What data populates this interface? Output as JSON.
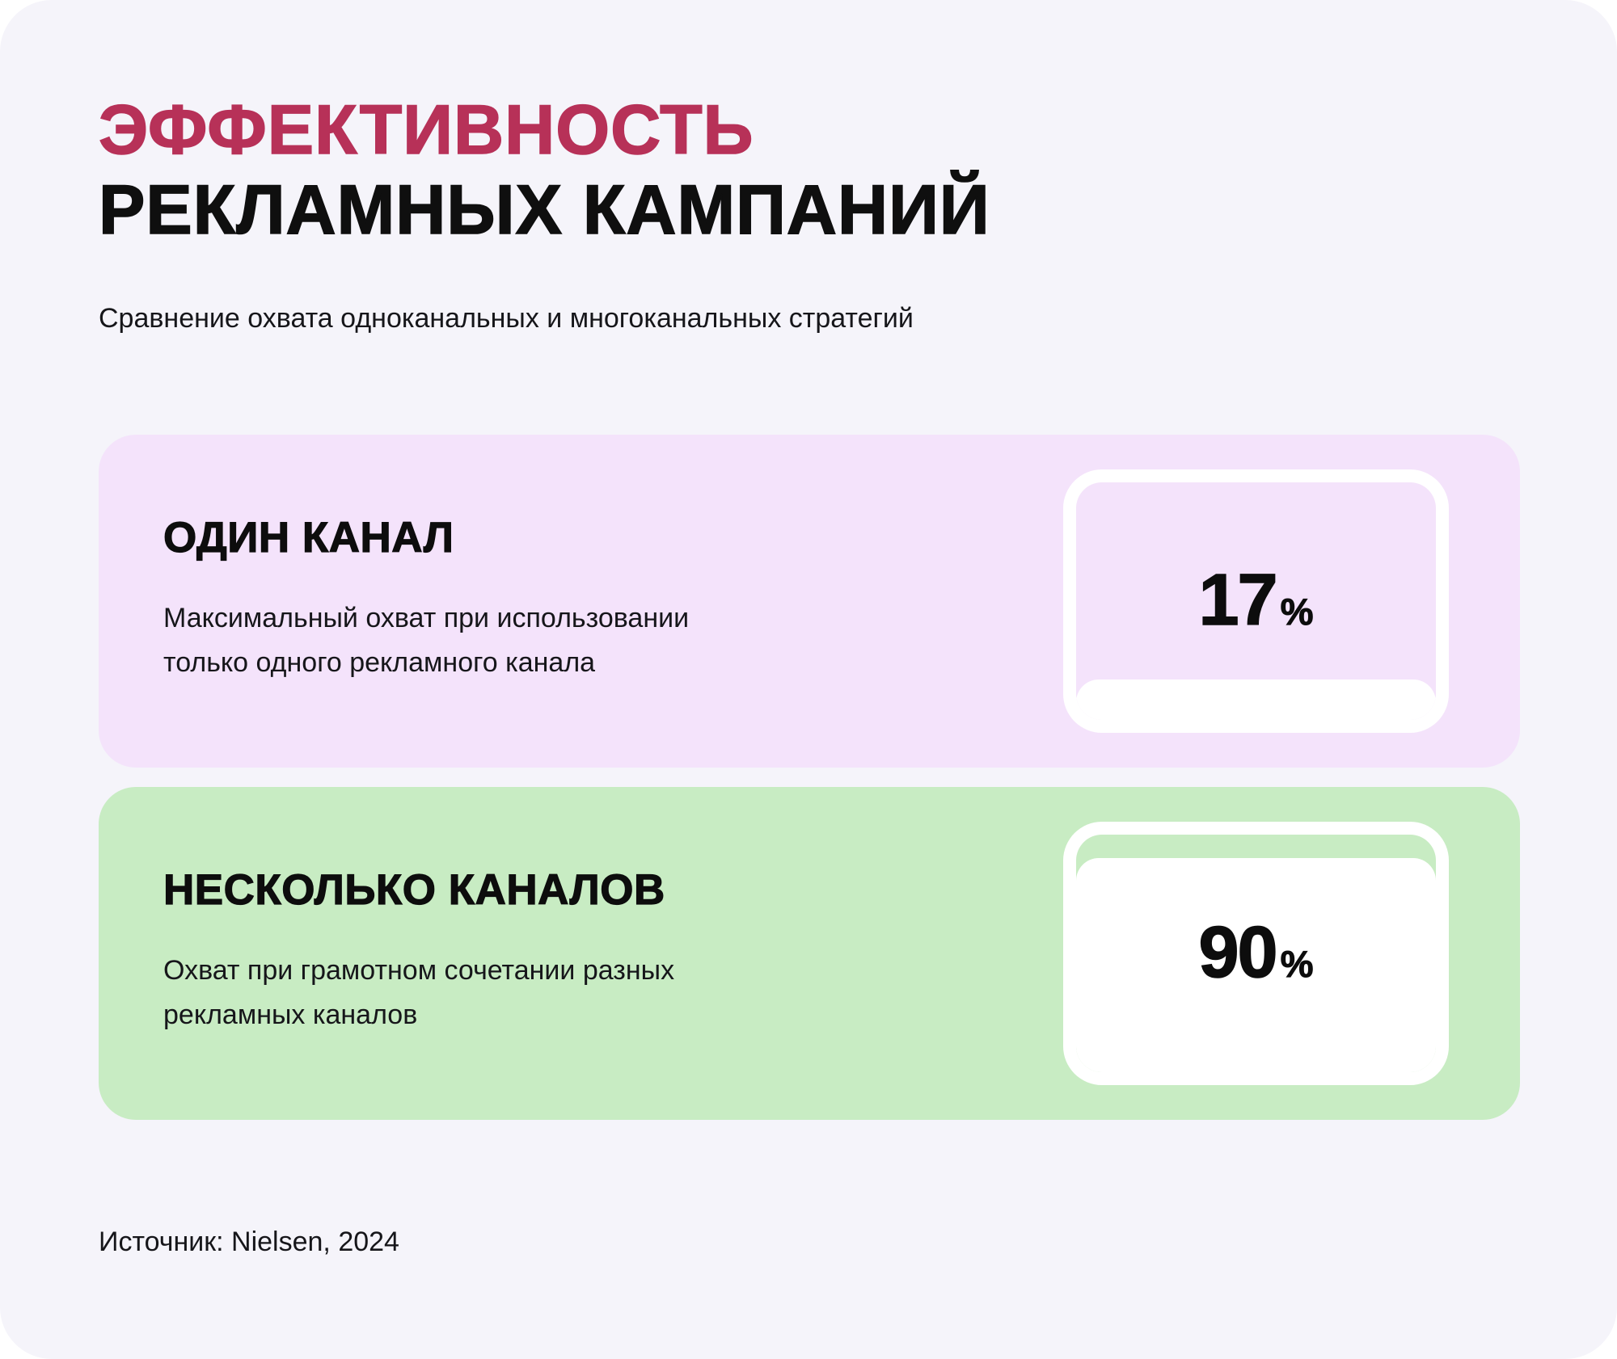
{
  "colors": {
    "canvas_bg": "#f5f4fa",
    "accent": "#b73158",
    "text": "#121212",
    "card_single_bg": "#f4e3fb",
    "card_multi_bg": "#c8ecc3",
    "gauge_fill": "#ffffff"
  },
  "header": {
    "title_line1": "ЭФФЕКТИВНОСТЬ",
    "title_line2": "РЕКЛАМНЫХ КАМПАНИЙ",
    "subtitle": "Сравнение охвата одноканальных и многоканальных стратегий"
  },
  "cards": [
    {
      "title": "ОДИН КАНАЛ",
      "description": "Максимальный охват при использовании только одного рекламного канала",
      "value": 17,
      "value_text": "17",
      "unit": "%",
      "bg_color": "#f4e3fb"
    },
    {
      "title": "НЕСКОЛЬКО КАНАЛОВ",
      "description": "Охват при грамотном сочетании разных рекламных каналов",
      "value": 90,
      "value_text": "90",
      "unit": "%",
      "bg_color": "#c8ecc3"
    }
  ],
  "footer": {
    "source": "Источник: Nielsen, 2024"
  },
  "chart_data": {
    "type": "bar",
    "title": "Эффективность рекламных кампаний",
    "subtitle": "Сравнение охвата одноканальных и многоканальных стратегий",
    "categories": [
      "Один канал",
      "Несколько каналов"
    ],
    "values": [
      17,
      90
    ],
    "unit": "%",
    "value_labels": [
      "17%",
      "90%"
    ],
    "ylim": [
      0,
      100
    ],
    "orientation": "gauge-fill",
    "legend": "none",
    "source": "Nielsen, 2024"
  }
}
